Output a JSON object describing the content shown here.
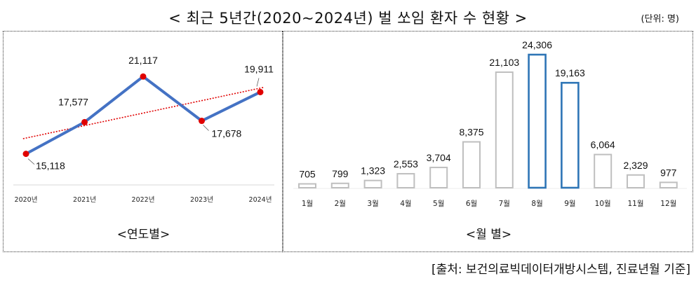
{
  "header": {
    "title": "< 최근 5년간(2020~2024년) 벌 쏘임 환자 수 현황 >",
    "unit": "(단위: 명)"
  },
  "captions": {
    "yearly": "<연도별>",
    "monthly": "<월 별>"
  },
  "source": "[출처: 보건의료빅데이터개방시스템, 진료년월 기준]",
  "colors": {
    "line": "#4472C4",
    "marker": "#E00000",
    "trend": "#E00000",
    "bar_default": "#BFBFBF",
    "bar_highlight": "#2E75B6"
  },
  "chart_data": [
    {
      "type": "line",
      "categories": [
        "2020년",
        "2021년",
        "2022년",
        "2023년",
        "2024년"
      ],
      "series": [
        {
          "values": [
            15118,
            17577,
            21117,
            17678,
            19911
          ]
        }
      ],
      "data_labels": [
        "15,118",
        "17,577",
        "21,117",
        "17,678",
        "19,911"
      ],
      "trendline": "linear",
      "ylim": [
        14500,
        22000
      ]
    },
    {
      "type": "bar",
      "categories": [
        "1월",
        "2월",
        "3월",
        "4월",
        "5월",
        "6월",
        "7월",
        "8월",
        "9월",
        "10월",
        "11월",
        "12월"
      ],
      "values": [
        705,
        799,
        1323,
        2553,
        3704,
        8375,
        21103,
        24306,
        19163,
        6064,
        2329,
        977
      ],
      "data_labels": [
        "705",
        "799",
        "1,323",
        "2,553",
        "3,704",
        "8,375",
        "21,103",
        "24,306",
        "19,163",
        "6,064",
        "2,329",
        "977"
      ],
      "highlighted": [
        "8월",
        "9월"
      ],
      "ylim": [
        0,
        24306
      ]
    }
  ]
}
